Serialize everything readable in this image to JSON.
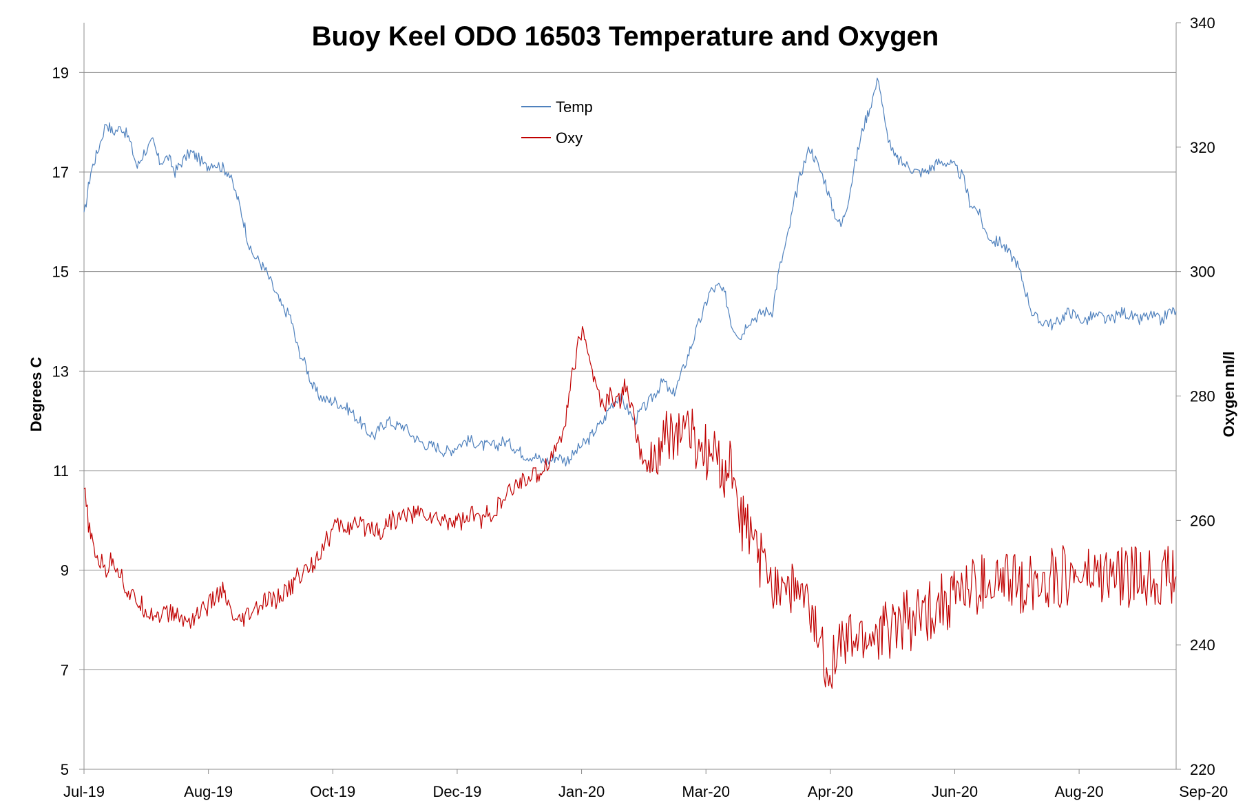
{
  "chart_data": {
    "type": "line",
    "title": "Buoy Keel ODO 16503 Temperature and Oxygen",
    "xlabel": "",
    "ylabel": "Degrees C",
    "y2label": "Oxygen ml/l",
    "ylim": [
      5,
      20
    ],
    "y2lim": [
      220,
      340
    ],
    "yticks": [
      "5",
      "7",
      "9",
      "11",
      "13",
      "15",
      "17",
      "19"
    ],
    "y2ticks": [
      "220",
      "240",
      "260",
      "280",
      "300",
      "320",
      "340"
    ],
    "xticks": [
      "Jul-19",
      "Aug-19",
      "Oct-19",
      "Dec-19",
      "Jan-20",
      "Mar-20",
      "Apr-20",
      "Jun-20",
      "Aug-20",
      "Sep-20"
    ],
    "grid": "horizontal",
    "legend_position": "top-center",
    "x_unit": "days from first sample",
    "series": [
      {
        "name": "Temp",
        "axis": "left",
        "color": "#4F81BD",
        "x": [
          0,
          3,
          6,
          10,
          13,
          17,
          20,
          24,
          27,
          31,
          34,
          38,
          41,
          44,
          48,
          51,
          55,
          58,
          62,
          65,
          69,
          72,
          75,
          79,
          82,
          86,
          89,
          93,
          96,
          100,
          103,
          106,
          110,
          113,
          117,
          120,
          124,
          127,
          131,
          134,
          137,
          141,
          144,
          148,
          151,
          155,
          158,
          162,
          165,
          168,
          172,
          175,
          179,
          182,
          186,
          189,
          193,
          196,
          199,
          203,
          206,
          210,
          213,
          217,
          220,
          224,
          227,
          230,
          234,
          237,
          241,
          244,
          248,
          251,
          255,
          258,
          261,
          265,
          268,
          272,
          275,
          279,
          282,
          286,
          289,
          292,
          296,
          299,
          303,
          306,
          310,
          313,
          317,
          320,
          323,
          327,
          330,
          334,
          337,
          341,
          344,
          348,
          351,
          354,
          358,
          361,
          365,
          368,
          372,
          375,
          379,
          382,
          385,
          389,
          392,
          396,
          399,
          403,
          406,
          410,
          413,
          416,
          420,
          423,
          427,
          430,
          434,
          437,
          441,
          444,
          447,
          451,
          454,
          458,
          461,
          465,
          468,
          472,
          475,
          478,
          482,
          485,
          489,
          492
        ],
        "values": [
          16.1,
          17.0,
          17.4,
          18.0,
          17.8,
          17.9,
          17.7,
          17.1,
          17.4,
          17.6,
          17.2,
          17.3,
          17.0,
          17.2,
          17.4,
          17.3,
          17.1,
          17.2,
          17.1,
          17.0,
          16.5,
          16.0,
          15.4,
          15.2,
          15.0,
          14.6,
          14.3,
          14.1,
          13.5,
          13.1,
          12.7,
          12.5,
          12.4,
          12.4,
          12.3,
          12.2,
          12.0,
          11.8,
          11.7,
          11.9,
          12.0,
          11.9,
          11.9,
          11.7,
          11.6,
          11.5,
          11.5,
          11.4,
          11.4,
          11.5,
          11.6,
          11.6,
          11.5,
          11.5,
          11.5,
          11.6,
          11.5,
          11.4,
          11.3,
          11.3,
          11.2,
          11.2,
          11.3,
          11.2,
          11.3,
          11.5,
          11.6,
          11.8,
          12.0,
          12.3,
          12.5,
          12.3,
          12.0,
          12.2,
          12.4,
          12.6,
          12.8,
          12.5,
          12.8,
          13.3,
          13.7,
          14.2,
          14.6,
          14.7,
          14.5,
          13.9,
          13.7,
          14.0,
          14.1,
          14.2,
          14.2,
          15.0,
          15.7,
          16.4,
          17.0,
          17.5,
          17.2,
          16.8,
          16.3,
          15.9,
          16.4,
          17.3,
          17.9,
          18.3,
          18.9,
          17.9,
          17.3,
          17.2,
          17.1,
          17.0,
          17.0,
          17.1,
          17.2,
          17.2,
          17.1,
          16.9,
          16.4,
          16.2,
          15.8,
          15.6,
          15.6,
          15.4,
          15.2,
          14.8,
          14.2,
          14.0,
          14.0,
          13.9,
          14.1,
          14.2,
          14.1,
          14.0,
          14.1,
          14.1,
          14.0,
          14.1,
          14.2,
          14.1,
          14.0,
          14.1,
          14.1,
          14.0,
          14.2,
          14.2
        ]
      },
      {
        "name": "Oxy",
        "axis": "right",
        "color": "#C00000",
        "x": [
          0,
          3,
          6,
          10,
          13,
          17,
          20,
          24,
          27,
          31,
          34,
          38,
          41,
          44,
          48,
          51,
          55,
          58,
          62,
          65,
          69,
          72,
          75,
          79,
          82,
          86,
          89,
          93,
          96,
          100,
          103,
          106,
          110,
          113,
          117,
          120,
          124,
          127,
          131,
          134,
          137,
          141,
          144,
          148,
          151,
          155,
          158,
          162,
          165,
          168,
          172,
          175,
          179,
          182,
          186,
          189,
          193,
          196,
          199,
          203,
          206,
          210,
          213,
          217,
          220,
          224,
          227,
          230,
          234,
          237,
          241,
          244,
          248,
          251,
          255,
          258,
          261,
          265,
          268,
          272,
          275,
          279,
          282,
          286,
          289,
          292,
          296,
          299,
          303,
          306,
          310,
          313,
          317,
          320,
          323,
          327,
          330,
          334,
          337,
          341,
          344,
          348,
          351,
          354,
          358,
          361,
          365,
          368,
          372,
          375,
          379,
          382,
          385,
          389,
          392,
          396,
          399,
          403,
          406,
          410,
          413,
          416,
          420,
          423,
          427,
          430,
          434,
          437,
          441,
          444,
          447,
          451,
          454,
          458,
          461,
          465,
          468,
          472,
          475,
          478,
          482,
          485,
          489,
          492
        ],
        "values": [
          265,
          257,
          254,
          252,
          254,
          251,
          248,
          247,
          246,
          245,
          245,
          245,
          245,
          244,
          244,
          245,
          246,
          247,
          249,
          246,
          243,
          244,
          245,
          246,
          247,
          247,
          248,
          249,
          251,
          252,
          253,
          255,
          257,
          259,
          259,
          259,
          259,
          259,
          259,
          258,
          260,
          260,
          261,
          261,
          261,
          261,
          260,
          260,
          260,
          260,
          260,
          261,
          260,
          261,
          262,
          263,
          265,
          266,
          267,
          267,
          268,
          270,
          272,
          276,
          284,
          290,
          288,
          282,
          278,
          280,
          279,
          282,
          276,
          270,
          268,
          270,
          272,
          274,
          274,
          275,
          272,
          271,
          270,
          269,
          268,
          268,
          260,
          258,
          255,
          252,
          251,
          250,
          250,
          249,
          247,
          245,
          242,
          237,
          238,
          240,
          240,
          241,
          241,
          241,
          242,
          242,
          243,
          244,
          244,
          244,
          245,
          246,
          247,
          247,
          248,
          249,
          249,
          249,
          250,
          250,
          250,
          250,
          250,
          250,
          250,
          251,
          251,
          251,
          251,
          251,
          251,
          251,
          251,
          251,
          251,
          251,
          251,
          251,
          251,
          251,
          251,
          251,
          251,
          251
        ]
      }
    ]
  }
}
